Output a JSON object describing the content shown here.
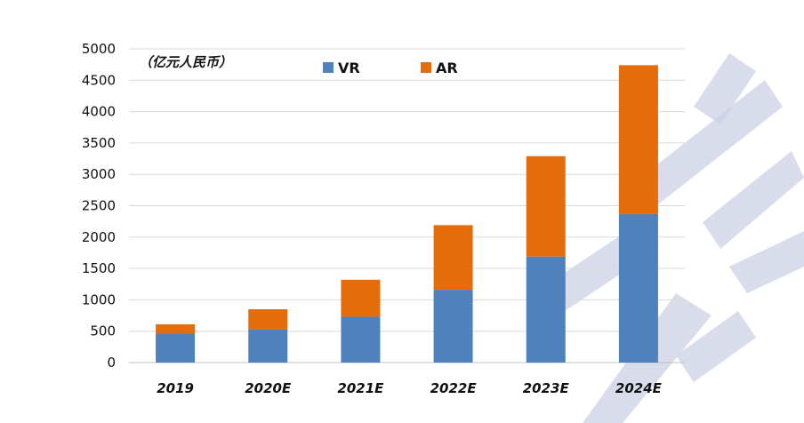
{
  "chart_data": {
    "type": "bar",
    "stacked": true,
    "unit_label": "（亿元人民币）",
    "categories": [
      "2019",
      "2020E",
      "2021E",
      "2022E",
      "2023E",
      "2024E"
    ],
    "series": [
      {
        "name": "VR",
        "color": "#4F81BD",
        "values": [
          460,
          530,
          730,
          1160,
          1690,
          2370
        ]
      },
      {
        "name": "AR",
        "color": "#E46C0A",
        "values": [
          150,
          320,
          590,
          1030,
          1600,
          2370
        ]
      }
    ],
    "ylim": [
      0,
      5000
    ],
    "yticks": [
      "0",
      "500",
      "1000",
      "1500",
      "2000",
      "2500",
      "3000",
      "3500",
      "4000",
      "4500",
      "5000"
    ],
    "grid": true,
    "legend": "top-center",
    "colors": {
      "grid": "#D9D9D9",
      "axis": "#BFBFBF",
      "watermark": "#C9CEE3"
    }
  }
}
